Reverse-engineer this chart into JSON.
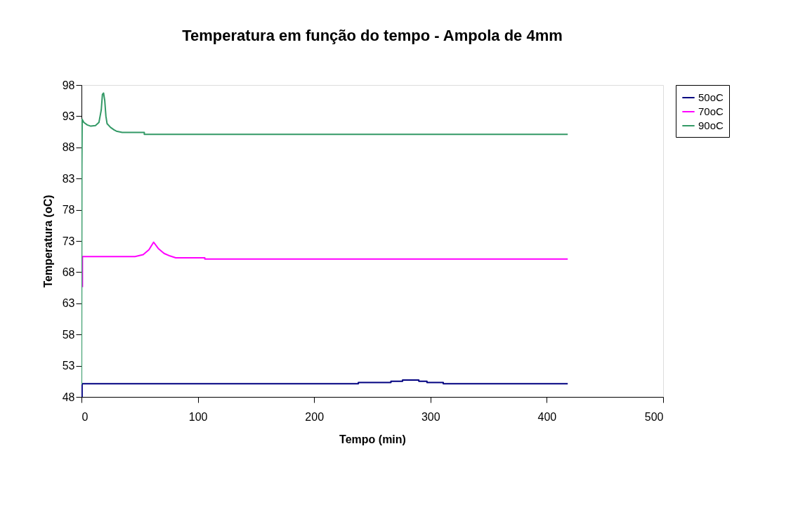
{
  "chart_data": {
    "type": "line",
    "title": "Temperatura em função do tempo - Ampola de 4mm",
    "xlabel": "Tempo (min)",
    "ylabel": "Temperatura (oC)",
    "xlim": [
      0,
      500
    ],
    "xticks": [
      0,
      100,
      200,
      300,
      400,
      500
    ],
    "ylim": [
      48,
      98
    ],
    "yticks": [
      48,
      53,
      58,
      63,
      68,
      73,
      78,
      83,
      88,
      93,
      98
    ],
    "grid": false,
    "legend": "right",
    "line_style": "solid",
    "marker": "none",
    "series": [
      {
        "name": "50oC",
        "color": "#000080",
        "x": [
          0.5,
          0.5,
          238,
          238,
          266,
          266,
          276,
          276,
          290,
          290,
          297,
          297,
          311,
          311,
          418
        ],
        "values": [
          48,
          50.1,
          50.1,
          50.3,
          50.3,
          50.5,
          50.5,
          50.7,
          50.7,
          50.5,
          50.5,
          50.3,
          50.3,
          50.1,
          50.1
        ]
      },
      {
        "name": "70oC",
        "color": "#ff00ff",
        "x": [
          0.8,
          0.8,
          0.8,
          46,
          53,
          58,
          62,
          66,
          71,
          76,
          81,
          106,
          106,
          418
        ],
        "values": [
          65.6,
          68,
          70.5,
          70.5,
          70.8,
          71.6,
          72.8,
          71.8,
          71,
          70.6,
          70.3,
          70.3,
          70.1,
          70.1
        ]
      },
      {
        "name": "90oC",
        "color": "#339966",
        "x": [
          0,
          0.3,
          0.6,
          2,
          5,
          8,
          12,
          15,
          16,
          17,
          18,
          19,
          20,
          21,
          22,
          25,
          28,
          30,
          35,
          40,
          54,
          54,
          418
        ],
        "values": [
          50,
          85,
          92.5,
          92,
          91.6,
          91.4,
          91.5,
          92,
          93,
          94,
          96.5,
          96.7,
          95.5,
          93,
          91.8,
          91.2,
          90.8,
          90.6,
          90.4,
          90.4,
          90.4,
          90.1,
          90.1
        ]
      }
    ]
  }
}
